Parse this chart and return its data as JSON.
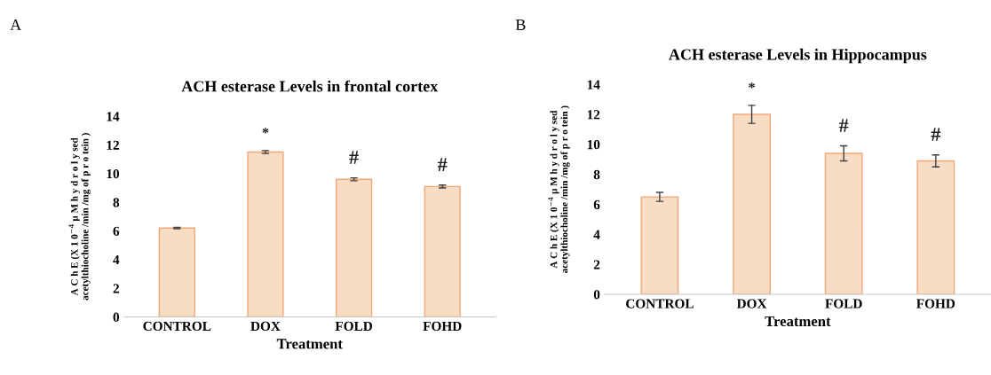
{
  "chart_data": [
    {
      "type": "bar",
      "title": "ACH esterase Levels in frontal cortex",
      "xlabel": "Treatment",
      "ylabel": "A C h E (X 1 0$^{−4}$ μ M h y d r o l y sed acetylthiocholine /min /mg of p r o tein )",
      "categories": [
        "CONTROL",
        "DOX",
        "FOLD",
        "FOHD"
      ],
      "values": [
        6.2,
        11.5,
        9.6,
        9.1
      ],
      "errors": [
        0.05,
        0.1,
        0.1,
        0.1
      ],
      "color": "#f8dcc4",
      "ylim": [
        0,
        14
      ],
      "yticks": [
        0,
        2,
        4,
        6,
        8,
        10,
        12,
        14
      ],
      "grid": false,
      "annotations": [
        "A",
        "*",
        "#",
        "#"
      ]
    },
    {
      "type": "bar",
      "title": "ACH esterase Levels in Hippocampus",
      "xlabel": "Treatment",
      "ylabel": "A C h E (X 1 0$^{−4}$ μ M h y d r o l y sed acetylthiocholine /min /mg of p r o tein )",
      "categories": [
        "CONTROL",
        "DOX",
        "FOLD",
        "FOHD"
      ],
      "values": [
        6.5,
        12.0,
        9.4,
        8.9
      ],
      "errors": [
        0.3,
        0.6,
        0.5,
        0.4
      ],
      "color": "#f8dcc4",
      "ylim": [
        0,
        14
      ],
      "yticks": [
        0,
        2,
        4,
        6,
        8,
        10,
        12,
        14
      ],
      "grid": false,
      "annotations": [
        "B",
        "*",
        "#",
        "#"
      ]
    }
  ]
}
